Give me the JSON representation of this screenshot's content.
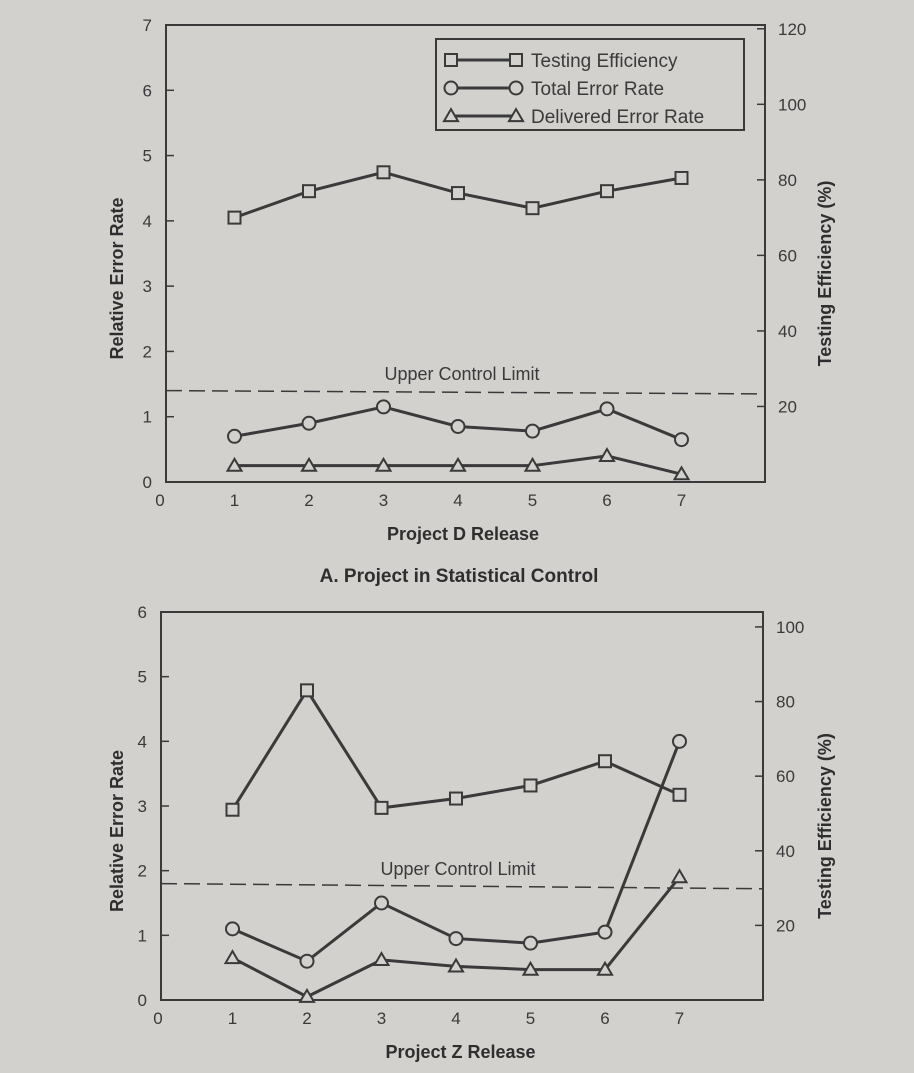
{
  "colors": {
    "background": "#d3d1ce",
    "ink": "#3a3a3a"
  },
  "chart_data": [
    {
      "type": "line",
      "caption": "A. Project in Statistical Control",
      "xlabel": "Project D Release",
      "ylabel": "Relative Error Rate",
      "y2label": "Testing Efficiency (%)",
      "xlim": [
        0,
        8
      ],
      "ylim": [
        0,
        7
      ],
      "y2lim": [
        0,
        121
      ],
      "x_ticks": [
        0,
        1,
        2,
        3,
        4,
        5,
        6,
        7
      ],
      "y_ticks": [
        0,
        1,
        2,
        3,
        4,
        5,
        6,
        7
      ],
      "y2_ticks": [
        20,
        40,
        60,
        80,
        100,
        120
      ],
      "x": [
        1,
        2,
        3,
        4,
        5,
        6,
        7
      ],
      "series": [
        {
          "name": "Testing Efficiency",
          "marker": "square",
          "axis": "right",
          "values": [
            70,
            77,
            82,
            76.5,
            72.5,
            77,
            80.5
          ]
        },
        {
          "name": "Total Error Rate",
          "marker": "circle",
          "axis": "left",
          "values": [
            0.7,
            0.9,
            1.15,
            0.85,
            0.78,
            1.12,
            0.65
          ]
        },
        {
          "name": "Delivered Error Rate",
          "marker": "triangle",
          "axis": "left",
          "values": [
            0.25,
            0.25,
            0.25,
            0.25,
            0.25,
            0.4,
            0.12
          ]
        }
      ],
      "control_limit": {
        "label": "Upper Control Limit",
        "y_start": 1.4,
        "y_end": 1.35
      },
      "legend": "top-right",
      "grid": false
    },
    {
      "type": "line",
      "caption": "",
      "xlabel": "Project Z Release",
      "ylabel": "Relative Error Rate",
      "y2label": "Testing Efficiency (%)",
      "xlim": [
        0,
        8
      ],
      "ylim": [
        0,
        6
      ],
      "y2lim": [
        0,
        104
      ],
      "x_ticks": [
        0,
        1,
        2,
        3,
        4,
        5,
        6,
        7
      ],
      "y_ticks": [
        0,
        1,
        2,
        3,
        4,
        5,
        6
      ],
      "y2_ticks": [
        20,
        40,
        60,
        80,
        100
      ],
      "x": [
        1,
        2,
        3,
        4,
        5,
        6,
        7
      ],
      "series": [
        {
          "name": "Testing Efficiency",
          "marker": "square",
          "axis": "right",
          "values": [
            51,
            83,
            51.5,
            54,
            57.5,
            64,
            55
          ]
        },
        {
          "name": "Total Error Rate",
          "marker": "circle",
          "axis": "left",
          "values": [
            1.1,
            0.6,
            1.5,
            0.95,
            0.88,
            1.05,
            4.0
          ]
        },
        {
          "name": "Delivered Error Rate",
          "marker": "triangle",
          "axis": "left",
          "values": [
            0.65,
            0.05,
            0.62,
            0.52,
            0.47,
            0.47,
            1.9
          ]
        }
      ],
      "control_limit": {
        "label": "Upper Control Limit",
        "y_start": 1.8,
        "y_end": 1.72
      },
      "legend": "none",
      "grid": false
    }
  ]
}
